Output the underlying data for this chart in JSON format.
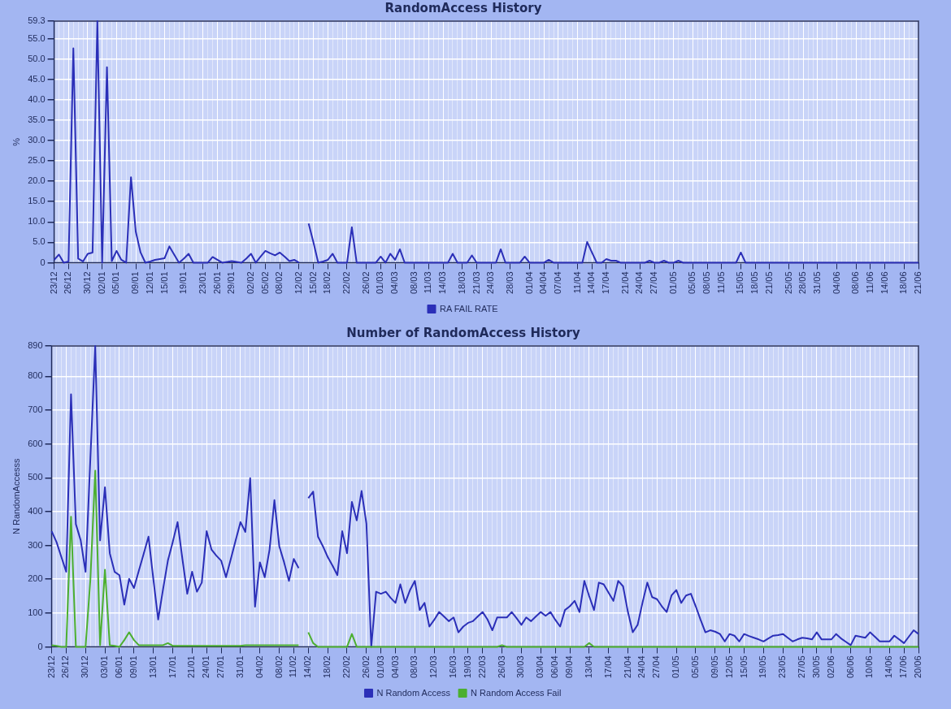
{
  "chart_data": [
    {
      "type": "line",
      "title": "RandomAccess History",
      "ylabel": "%",
      "grid": true,
      "legend": "bottom",
      "ylim": [
        0,
        59.3
      ],
      "yticks": [
        0,
        {
          "value": 5,
          "label": "5.0"
        },
        {
          "value": 10,
          "label": "10.0"
        },
        {
          "value": 15,
          "label": "15.0"
        },
        {
          "value": 20,
          "label": "20.0"
        },
        {
          "value": 25,
          "label": "25.0"
        },
        {
          "value": 30,
          "label": "30.0"
        },
        {
          "value": 35,
          "label": "35.0"
        },
        {
          "value": 40,
          "label": "40.0"
        },
        {
          "value": 45,
          "label": "45.0"
        },
        {
          "value": 50,
          "label": "50.0"
        },
        {
          "value": 55,
          "label": "55.0"
        },
        59.3
      ],
      "categories": [
        "23/12",
        null,
        null,
        "26/12",
        null,
        null,
        null,
        "30/12",
        null,
        null,
        "02/01",
        null,
        null,
        "05/01",
        null,
        null,
        null,
        "09/01",
        null,
        null,
        "12/01",
        null,
        null,
        "15/01",
        null,
        null,
        null,
        "19/01",
        null,
        null,
        null,
        "23/01",
        null,
        null,
        "26/01",
        null,
        null,
        "29/01",
        null,
        null,
        null,
        "02/02",
        null,
        null,
        "05/02",
        null,
        null,
        "08/02",
        null,
        null,
        null,
        "12/02",
        null,
        null,
        "15/02",
        null,
        null,
        "18/02",
        null,
        null,
        null,
        "22/02",
        null,
        null,
        null,
        "26/02",
        null,
        null,
        "01/03",
        null,
        null,
        "04/03",
        null,
        null,
        null,
        "08/03",
        null,
        null,
        "11/03",
        null,
        null,
        "14/03",
        null,
        null,
        null,
        "18/03",
        null,
        null,
        "21/03",
        null,
        null,
        "24/03",
        null,
        null,
        null,
        "28/03",
        null,
        null,
        null,
        "01/04",
        null,
        null,
        "04/04",
        null,
        null,
        "07/04",
        null,
        null,
        null,
        "11/04",
        null,
        null,
        "14/04",
        null,
        null,
        "17/04",
        null,
        null,
        null,
        "21/04",
        null,
        null,
        "24/04",
        null,
        null,
        "27/04",
        null,
        null,
        null,
        "01/05",
        null,
        null,
        null,
        "05/05",
        null,
        null,
        "08/05",
        null,
        null,
        "11/05",
        null,
        null,
        null,
        "15/05",
        null,
        null,
        "18/05",
        null,
        null,
        "21/05",
        null,
        null,
        null,
        "25/05",
        null,
        null,
        "28/05",
        null,
        null,
        "31/05",
        null,
        null,
        null,
        "04/06",
        null,
        null,
        null,
        "08/06",
        null,
        null,
        "11/06",
        null,
        null,
        "14/06",
        null,
        null,
        null,
        "18/06",
        null,
        null,
        "21/06"
      ],
      "series": [
        {
          "name": "RA FAIL RATE",
          "color": "#2b2fb8",
          "values": [
            0.7,
            2.0,
            0,
            0.3,
            52.6,
            1.0,
            0.3,
            2.2,
            2.5,
            59.3,
            0,
            48,
            0.4,
            2.9,
            0.7,
            0,
            21,
            7.6,
            2.5,
            0,
            0.3,
            0.7,
            0.9,
            1.1,
            4.0,
            2.0,
            0,
            1.0,
            2.2,
            0,
            0,
            0,
            0,
            1.4,
            0.7,
            0,
            0.2,
            0.4,
            0.2,
            0,
            1.0,
            2.2,
            0,
            1.5,
            2.9,
            2.3,
            1.8,
            2.5,
            1.5,
            0.4,
            0.7,
            0,
            null,
            9.6,
            5.0,
            0,
            0.3,
            0.7,
            2.2,
            0,
            0,
            0,
            8.7,
            0,
            0,
            0,
            0,
            0,
            1.5,
            0,
            2.2,
            0.7,
            3.3,
            0,
            0,
            0,
            0,
            0,
            0,
            0,
            0,
            0,
            0,
            2.2,
            0,
            0,
            0,
            1.8,
            0,
            0,
            0,
            0,
            0,
            3.3,
            0,
            0,
            0,
            0,
            1.5,
            0,
            0,
            0,
            0,
            0.7,
            0,
            0,
            0,
            0,
            0,
            0,
            0,
            5.1,
            2.5,
            0,
            0,
            0.9,
            0.5,
            0.5,
            0,
            0,
            0,
            0,
            0,
            0,
            0.5,
            0,
            0,
            0.5,
            0,
            0,
            0.5,
            0,
            0,
            0,
            0,
            0,
            0,
            0,
            0,
            0,
            0,
            0,
            0,
            2.5,
            0,
            0,
            0,
            0,
            0,
            0,
            0,
            0,
            0,
            0,
            0,
            0,
            0,
            0,
            0,
            0,
            0,
            0,
            0,
            0,
            0,
            0,
            0,
            0,
            0,
            0,
            0,
            0,
            0,
            0,
            0,
            0,
            0,
            0,
            0,
            0,
            0
          ]
        }
      ]
    },
    {
      "type": "line",
      "title": "Number of RandomAccess History",
      "ylabel": "N RandomAccesss",
      "grid": true,
      "legend": "bottom",
      "ylim": [
        0,
        890
      ],
      "yticks": [
        0,
        100,
        200,
        300,
        400,
        500,
        600,
        700,
        800,
        890
      ],
      "categories": [
        "23/12",
        null,
        null,
        "26/12",
        null,
        null,
        null,
        "30/12",
        null,
        null,
        null,
        "03/01",
        null,
        null,
        "06/01",
        null,
        null,
        "09/01",
        null,
        null,
        null,
        "13/01",
        null,
        null,
        null,
        "17/01",
        null,
        null,
        null,
        "21/01",
        null,
        null,
        "24/01",
        null,
        null,
        "27/01",
        null,
        null,
        null,
        "31/01",
        null,
        null,
        null,
        "04/02",
        null,
        null,
        null,
        "08/02",
        null,
        null,
        "11/02",
        null,
        null,
        "14/02",
        null,
        null,
        null,
        "18/02",
        null,
        null,
        null,
        "22/02",
        null,
        null,
        null,
        "26/02",
        null,
        null,
        "01/03",
        null,
        null,
        "04/03",
        null,
        null,
        null,
        "08/03",
        null,
        null,
        null,
        "12/03",
        null,
        null,
        null,
        "16/03",
        null,
        null,
        "19/03",
        null,
        null,
        "22/03",
        null,
        null,
        null,
        "26/03",
        null,
        null,
        null,
        "30/03",
        null,
        null,
        null,
        "03/04",
        null,
        null,
        "06/04",
        null,
        null,
        "09/04",
        null,
        null,
        null,
        "13/04",
        null,
        null,
        null,
        "17/04",
        null,
        null,
        null,
        "21/04",
        null,
        null,
        "24/04",
        null,
        null,
        "27/04",
        null,
        null,
        null,
        "01/05",
        null,
        null,
        null,
        "05/05",
        null,
        null,
        null,
        "09/05",
        null,
        null,
        "12/05",
        null,
        null,
        "15/05",
        null,
        null,
        null,
        "19/05",
        null,
        null,
        null,
        "23/05",
        null,
        null,
        null,
        "27/05",
        null,
        null,
        "30/05",
        null,
        null,
        "02/06",
        null,
        null,
        null,
        "06/06",
        null,
        null,
        null,
        "10/06",
        null,
        null,
        null,
        "14/06",
        null,
        null,
        "17/06",
        null,
        null,
        "20/06"
      ],
      "series": [
        {
          "name": "N Random Access",
          "color": "#2b2fb8",
          "values": [
            342,
            310,
            266,
            222,
            747,
            363,
            315,
            222,
            559,
            890,
            315,
            472,
            277,
            222,
            212,
            125,
            201,
            174,
            225,
            275,
            326,
            200,
            81,
            170,
            255,
            310,
            369,
            260,
            157,
            222,
            163,
            190,
            342,
            288,
            270,
            255,
            206,
            260,
            315,
            369,
            340,
            499,
            119,
            250,
            206,
            288,
            434,
            298,
            250,
            195,
            260,
            233,
            null,
            440,
            459,
            326,
            298,
            266,
            240,
            212,
            342,
            277,
            429,
            374,
            461,
            364,
            0,
            163,
            157,
            163,
            145,
            130,
            185,
            130,
            168,
            195,
            109,
            130,
            60,
            80,
            103,
            90,
            76,
            87,
            43,
            60,
            71,
            76,
            90,
            103,
            81,
            49,
            87,
            87,
            87,
            103,
            85,
            65,
            87,
            76,
            90,
            103,
            92,
            103,
            80,
            60,
            109,
            120,
            136,
            103,
            195,
            150,
            109,
            190,
            185,
            160,
            136,
            195,
            179,
            103,
            43,
            65,
            130,
            190,
            147,
            141,
            120,
            103,
            152,
            168,
            130,
            152,
            157,
            120,
            80,
            43,
            49,
            45,
            38,
            16,
            38,
            33,
            16,
            38,
            32,
            27,
            22,
            16,
            25,
            33,
            35,
            38,
            27,
            16,
            22,
            27,
            25,
            22,
            43,
            22,
            22,
            22,
            38,
            25,
            15,
            5,
            33,
            30,
            27,
            43,
            30,
            16,
            16,
            16,
            33,
            22,
            11,
            30,
            49,
            38
          ]
        },
        {
          "name": "N Random Access Fail",
          "color": "#4caf30",
          "values": [
            5,
            3,
            0,
            0,
            385,
            0,
            0,
            0,
            200,
            521,
            5,
            228,
            5,
            3,
            0,
            20,
            43,
            20,
            5,
            5,
            5,
            5,
            5,
            5,
            11,
            3,
            3,
            3,
            3,
            3,
            3,
            3,
            3,
            3,
            3,
            3,
            3,
            3,
            3,
            3,
            5,
            5,
            5,
            5,
            5,
            5,
            5,
            5,
            5,
            5,
            5,
            5,
            null,
            43,
            11,
            0,
            0,
            0,
            0,
            0,
            0,
            0,
            38,
            0,
            0,
            0,
            0,
            0,
            0,
            0,
            0,
            0,
            0,
            0,
            0,
            0,
            0,
            0,
            0,
            0,
            0,
            0,
            0,
            0,
            0,
            0,
            0,
            0,
            0,
            0,
            0,
            0,
            0,
            5,
            0,
            0,
            0,
            0,
            0,
            0,
            0,
            0,
            0,
            0,
            0,
            0,
            0,
            0,
            0,
            0,
            0,
            11,
            0,
            0,
            0,
            0,
            0,
            0,
            0,
            0,
            0,
            0,
            0,
            0,
            0,
            0,
            0,
            0,
            0,
            0,
            0,
            0,
            0,
            0,
            0,
            0,
            0,
            0,
            0,
            0,
            0,
            0,
            0,
            0,
            0,
            0,
            0,
            0,
            0,
            0,
            0,
            0,
            0,
            0,
            0,
            0,
            0,
            0,
            0,
            0,
            0,
            0,
            0,
            0,
            0,
            0,
            0,
            0,
            0,
            0,
            0,
            0,
            0,
            0,
            0,
            0,
            0,
            0,
            0,
            0
          ]
        }
      ]
    }
  ]
}
